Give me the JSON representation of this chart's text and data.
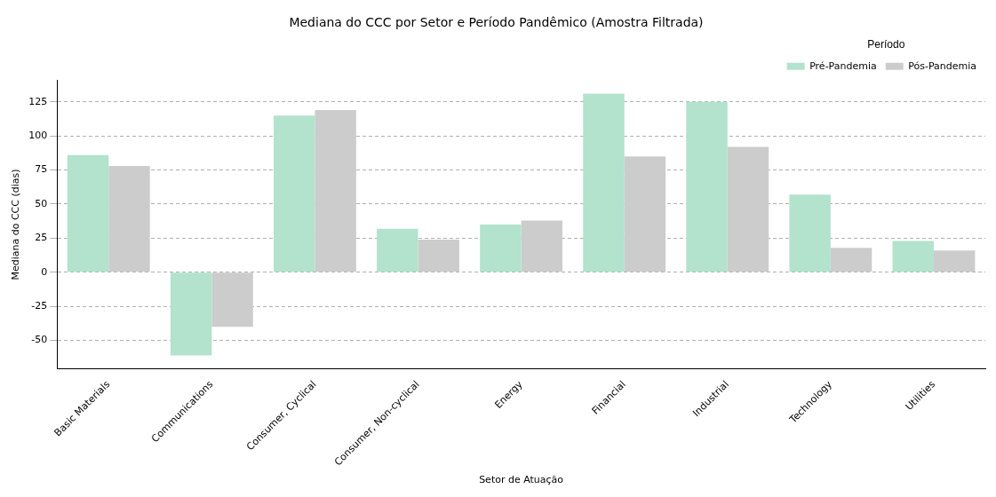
{
  "chart_data": {
    "type": "bar",
    "title": "Mediana do CCC por Setor e Período Pandêmico (Amostra Filtrada)",
    "xlabel": "Setor de Atuação",
    "ylabel": "Mediana do CCC (dias)",
    "legend_title": "Período",
    "categories": [
      "Basic Materials",
      "Communications",
      "Consumer, Cyclical",
      "Consumer, Non-cyclical",
      "Energy",
      "Financial",
      "Industrial",
      "Technology",
      "Utilities"
    ],
    "series": [
      {
        "name": "Pré-Pandemia",
        "color": "#b3e2cd",
        "values": [
          86,
          -61,
          115,
          32,
          35,
          131,
          125,
          57,
          23
        ]
      },
      {
        "name": "Pós-Pandemia",
        "color": "#cccccc",
        "values": [
          78,
          -40,
          119,
          24,
          38,
          85,
          92,
          18,
          16
        ]
      }
    ],
    "ylim": [
      -71,
      141
    ],
    "yticks": [
      -50,
      -25,
      0,
      25,
      50,
      75,
      100,
      125
    ],
    "grid": "y",
    "legend": "top right"
  }
}
